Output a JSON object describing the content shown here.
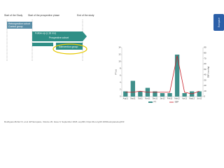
{
  "chart_data": {
    "type": "bar-line",
    "categories": [
      "Aug11",
      "Sep11",
      "Oct11",
      "Nov11",
      "Dec11",
      "Jan12",
      "Feb12",
      "Mar12",
      "Apr12",
      "May12",
      "Jun12"
    ],
    "series": [
      {
        "name": "PT",
        "color": "#3f8f8a",
        "values": [
          1.5,
          4.5,
          1.5,
          2.5,
          1.5,
          1,
          1,
          12,
          1,
          1.5,
          1.5
        ]
      },
      {
        "name": "SBP",
        "color": "#c8202a",
        "axis": "y2",
        "values": [
          8,
          8,
          10,
          8,
          8,
          8,
          8,
          75,
          8,
          5,
          10
        ]
      }
    ],
    "y_label": "PT (s)",
    "y2_label": "SBP (mmHg)",
    "ylim": [
      0,
      14
    ],
    "yticks": [
      0,
      2,
      4,
      6,
      8,
      10,
      12,
      14
    ],
    "y2lim": [
      0,
      90
    ],
    "y2ticks": [
      0,
      10,
      20,
      30,
      40,
      50,
      60,
      70,
      80,
      90
    ],
    "grid": false,
    "legend": "bottom"
  },
  "diagram": {
    "milestones": [
      "Start of the Study",
      "Start of the prospective phase",
      "End of the study"
    ],
    "boxes": [
      "Retrospective cohort",
      "Control group",
      "Follow-up (c.18 mo)",
      "Prospective cohort",
      "Intervention group"
    ]
  },
  "citation": "Rodrigues-Muñoz D, et al. EP Europace, Volume 20, Issue 9, September 2018, euy033, https://doi.org/10.1093/europace/euy033",
  "side_tab": "Europace"
}
